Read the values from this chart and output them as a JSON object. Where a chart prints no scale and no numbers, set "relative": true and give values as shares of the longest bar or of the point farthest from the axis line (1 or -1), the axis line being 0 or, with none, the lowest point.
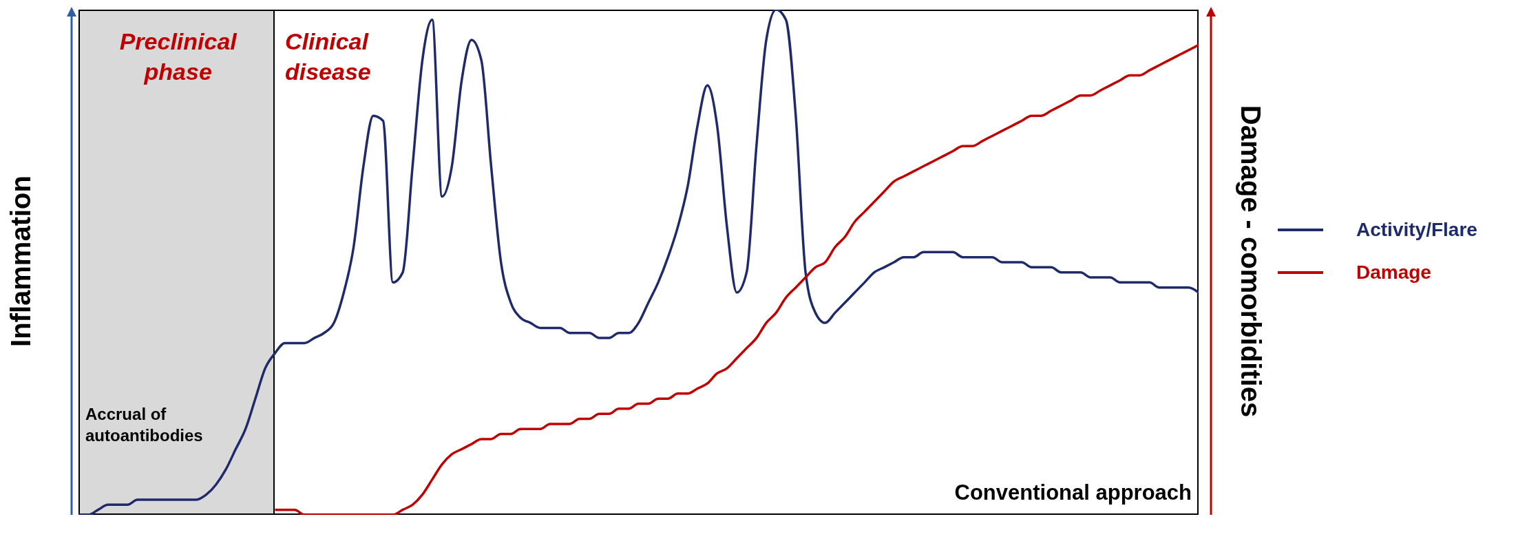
{
  "chart_data": {
    "type": "line",
    "relative": true,
    "legend": "right",
    "ylabel": "Inflammation",
    "y2label": "Damage - comorbidities",
    "categories": [
      null,
      null,
      null,
      null,
      null,
      null,
      null,
      null,
      null,
      null,
      null,
      null,
      null,
      null,
      null,
      null,
      null,
      null,
      null,
      null,
      null,
      null,
      null,
      null,
      null,
      null,
      null,
      null,
      null,
      null,
      null,
      null,
      null,
      null,
      null,
      null,
      null,
      null,
      null,
      null,
      null,
      null,
      null,
      null,
      null,
      null,
      null,
      null,
      null,
      null,
      null,
      null,
      null,
      null,
      null,
      null,
      null,
      null,
      null,
      null,
      null,
      null,
      null,
      null,
      null,
      null,
      null,
      null,
      null,
      null,
      null,
      null,
      null,
      null,
      null,
      null,
      null,
      null,
      null,
      null,
      null,
      null,
      null,
      null,
      null,
      null,
      null,
      null,
      null,
      null,
      null,
      null,
      null,
      null,
      null,
      null,
      null,
      null,
      null,
      null,
      null,
      null,
      null,
      null,
      null,
      null,
      null,
      null,
      null,
      null,
      null,
      null,
      null,
      null,
      null
    ],
    "series": [
      {
        "name": "Activity/Flare",
        "color": "#1f2a6b",
        "values": [
          0,
          0,
          0.01,
          0.02,
          0.02,
          0.02,
          0.03,
          0.03,
          0.03,
          0.03,
          0.03,
          0.03,
          0.03,
          0.04,
          0.06,
          0.09,
          0.13,
          0.17,
          0.23,
          0.29,
          0.32,
          0.34,
          0.34,
          0.34,
          0.35,
          0.36,
          0.38,
          0.44,
          0.53,
          0.69,
          0.79,
          0.78,
          0.46,
          0.48,
          0.69,
          0.9,
          0.98,
          0.63,
          0.69,
          0.86,
          0.94,
          0.9,
          0.69,
          0.5,
          0.42,
          0.39,
          0.38,
          0.37,
          0.37,
          0.37,
          0.36,
          0.36,
          0.36,
          0.35,
          0.35,
          0.36,
          0.36,
          0.38,
          0.42,
          0.46,
          0.51,
          0.57,
          0.65,
          0.77,
          0.85,
          0.77,
          0.57,
          0.44,
          0.48,
          0.73,
          0.94,
          1,
          0.98,
          0.79,
          0.48,
          0.4,
          0.38,
          0.4,
          0.42,
          0.44,
          0.46,
          0.48,
          0.49,
          0.5,
          0.51,
          0.51,
          0.52,
          0.52,
          0.52,
          0.52,
          0.51,
          0.51,
          0.51,
          0.51,
          0.5,
          0.5,
          0.5,
          0.49,
          0.49,
          0.49,
          0.48,
          0.48,
          0.48,
          0.47,
          0.47,
          0.47,
          0.46,
          0.46,
          0.46,
          0.46,
          0.45,
          0.45,
          0.45,
          0.45,
          0.44
        ]
      },
      {
        "name": "Damage",
        "color": "#c00000",
        "values": [
          null,
          null,
          null,
          null,
          null,
          null,
          null,
          null,
          null,
          null,
          null,
          null,
          null,
          null,
          null,
          null,
          null,
          null,
          null,
          null,
          0.01,
          0.01,
          0.01,
          0,
          0,
          0,
          0,
          0,
          0,
          0,
          0,
          0,
          0,
          0.01,
          0.02,
          0.04,
          0.07,
          0.1,
          0.12,
          0.13,
          0.14,
          0.15,
          0.15,
          0.16,
          0.16,
          0.17,
          0.17,
          0.17,
          0.18,
          0.18,
          0.18,
          0.19,
          0.19,
          0.2,
          0.2,
          0.21,
          0.21,
          0.22,
          0.22,
          0.23,
          0.23,
          0.24,
          0.24,
          0.25,
          0.26,
          0.28,
          0.29,
          0.31,
          0.33,
          0.35,
          0.38,
          0.4,
          0.43,
          0.45,
          0.47,
          0.49,
          0.5,
          0.53,
          0.55,
          0.58,
          0.6,
          0.62,
          0.64,
          0.66,
          0.67,
          0.68,
          0.69,
          0.7,
          0.71,
          0.72,
          0.73,
          0.73,
          0.74,
          0.75,
          0.76,
          0.77,
          0.78,
          0.79,
          0.79,
          0.8,
          0.81,
          0.82,
          0.83,
          0.83,
          0.84,
          0.85,
          0.86,
          0.87,
          0.87,
          0.88,
          0.89,
          0.9,
          0.91,
          0.92,
          0.93
        ]
      }
    ],
    "annotations": [
      "Preclinical phase",
      "Clinical disease",
      "Accrual of autoantibodies",
      "Conventional approach"
    ]
  }
}
